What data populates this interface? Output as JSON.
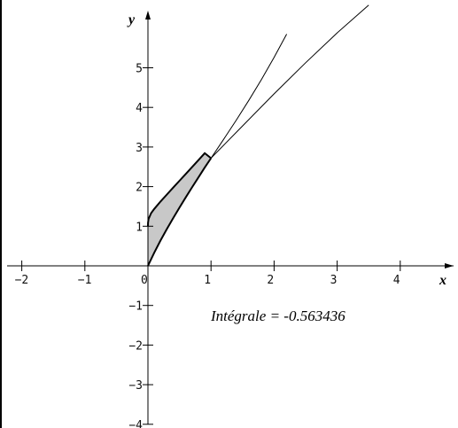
{
  "chart_data": {
    "type": "line",
    "title": "",
    "xlabel": "x",
    "ylabel": "y",
    "xlim": [
      -2.2,
      4.8
    ],
    "ylim": [
      -4.2,
      6.3
    ],
    "grid": false,
    "x_ticks": [
      -2,
      -1,
      0,
      1,
      2,
      3,
      4
    ],
    "x_tick_labels": [
      "−2",
      "−1",
      "0",
      "1",
      "2",
      "3",
      "4"
    ],
    "y_ticks": [
      -4,
      -3,
      -2,
      -1,
      1,
      2,
      3,
      4,
      5
    ],
    "y_tick_labels": [
      "−4",
      "−3",
      "−2",
      "−1",
      "1",
      "2",
      "3",
      "4",
      "5"
    ],
    "series": [
      {
        "values_x": [
          0,
          0.1,
          0.2,
          0.3,
          0.4,
          0.5,
          0.6,
          0.7,
          0.8,
          0.9,
          1.0,
          1.2,
          1.4,
          1.6,
          1.8,
          2.0,
          2.2
        ],
        "values_y": [
          0,
          0.332,
          0.64,
          0.93,
          1.206,
          1.471,
          1.729,
          1.982,
          2.232,
          2.481,
          2.718,
          3.193,
          3.678,
          4.179,
          4.706,
          5.262,
          5.85
        ]
      },
      {
        "values_x": [
          0,
          0.001,
          0.01,
          0.05,
          0.1,
          0.2,
          0.3,
          0.4,
          0.5,
          0.6,
          0.7,
          0.8,
          0.9,
          1.0,
          1.5,
          2.0,
          2.5,
          3.0,
          3.5
        ],
        "values_y": [
          1.0,
          1.088,
          1.183,
          1.331,
          1.436,
          1.624,
          1.802,
          1.975,
          2.147,
          2.32,
          2.493,
          2.668,
          2.843,
          2.718,
          3.532,
          4.342,
          5.127,
          5.881,
          6.583
        ]
      }
    ],
    "shaded_region": {
      "between": "curves",
      "x_range": [
        0,
        1
      ]
    },
    "annotation": "Intégrale = -0.563436",
    "colors": {
      "curve": "#000000",
      "shade": "#c8c8c8",
      "axes": "#000000"
    }
  }
}
